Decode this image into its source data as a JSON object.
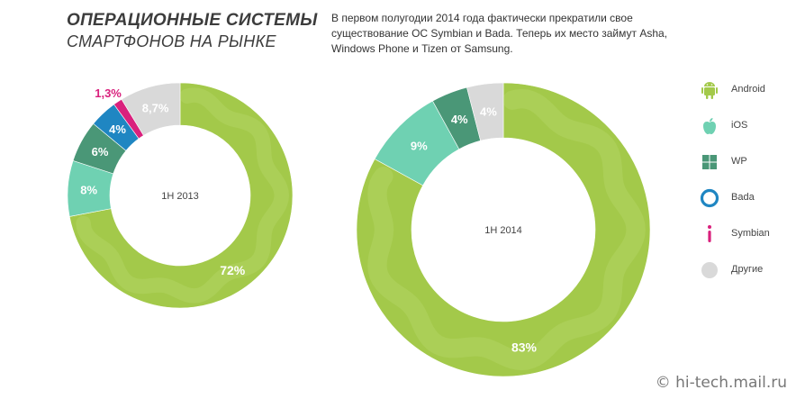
{
  "header": {
    "title": "Операционные системы",
    "subtitle": "смартфонов на рынке",
    "description": "В первом полугодии 2014 года фактически прекратили свое существование ОС Symbian и Bada. Теперь их место займут Asha, Windows Phone и Tizen от Samsung."
  },
  "colors": {
    "Android": "#a3c94a",
    "iOS": "#6fd1b2",
    "WP": "#4a9777",
    "Bada": "#1f86c2",
    "Symbian": "#d9217d",
    "Другие": "#d9d9d9"
  },
  "legend": [
    {
      "label": "Android",
      "icon": "android-icon"
    },
    {
      "label": "iOS",
      "icon": "apple-icon"
    },
    {
      "label": "WP",
      "icon": "windows-icon"
    },
    {
      "label": "Bada",
      "icon": "bada-icon"
    },
    {
      "label": "Symbian",
      "icon": "symbian-icon"
    },
    {
      "label": "Другие",
      "icon": "other-icon"
    }
  ],
  "chart_data": [
    {
      "type": "pie",
      "center_label": "1H 2013",
      "categories": [
        "Android",
        "iOS",
        "WP",
        "Bada",
        "Symbian",
        "Другие"
      ],
      "values": [
        72,
        8,
        6,
        4,
        1.3,
        8.7
      ],
      "labels": [
        "72%",
        "8%",
        "6%",
        "4%",
        "1,3%",
        "8,7%"
      ]
    },
    {
      "type": "pie",
      "center_label": "1H 2014",
      "categories": [
        "Android",
        "iOS",
        "WP",
        "Другие"
      ],
      "values": [
        83,
        9,
        4,
        4
      ],
      "labels": [
        "83%",
        "9%",
        "4%",
        "4%"
      ]
    }
  ],
  "watermark": "© hi-tech.mail.ru"
}
